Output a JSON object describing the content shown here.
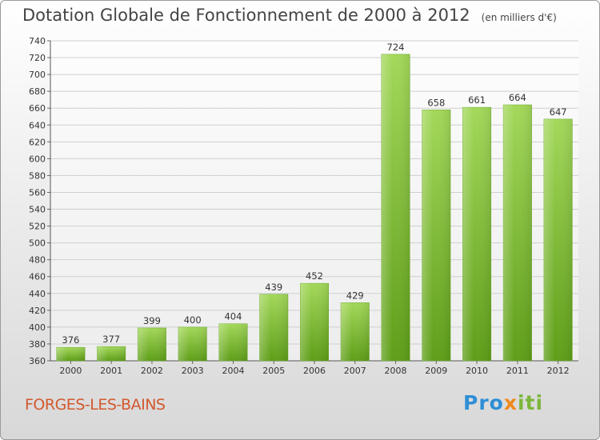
{
  "header": {
    "title": "Dotation Globale de Fonctionnement de 2000 à 2012",
    "unit": "(en milliers d'€)"
  },
  "footer": {
    "commune": "FORGES-LES-BAINS",
    "logo": {
      "part1": "Pro",
      "part2": "x",
      "part3": "iti"
    }
  },
  "chart_data": {
    "type": "bar",
    "categories": [
      "2000",
      "2001",
      "2002",
      "2003",
      "2004",
      "2005",
      "2006",
      "2007",
      "2008",
      "2009",
      "2010",
      "2011",
      "2012"
    ],
    "values": [
      376,
      377,
      399,
      400,
      404,
      439,
      452,
      429,
      724,
      658,
      661,
      664,
      647
    ],
    "ylim": [
      360,
      740
    ],
    "ytick_step": 20,
    "grid": "horizontal",
    "bar_color": "#7cbd35",
    "value_labels": true
  }
}
